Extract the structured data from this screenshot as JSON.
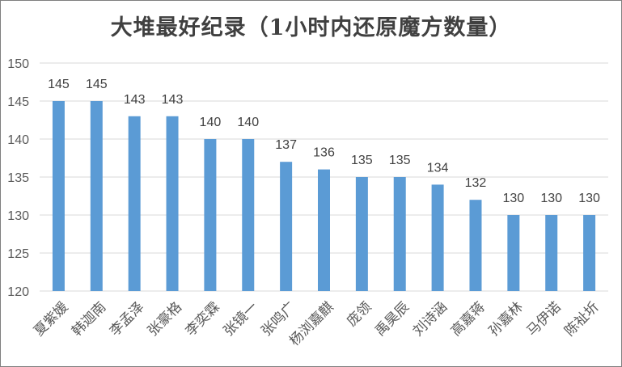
{
  "chart_data": {
    "type": "bar",
    "title": "大堆最好纪录（1小时内还原魔方数量）",
    "categories": [
      "夏紫媛",
      "韩迦南",
      "李孟泽",
      "张豪格",
      "李奕霖",
      "张镜一",
      "张鸣广",
      "杨浏嘉麒",
      "庞领",
      "禹昊辰",
      "刘诗涵",
      "高嘉蒋",
      "孙嘉林",
      "马伊诺",
      "陈祉圻"
    ],
    "values": [
      145,
      145,
      143,
      143,
      140,
      140,
      137,
      136,
      135,
      135,
      134,
      132,
      130,
      130,
      130
    ],
    "ylim": [
      120,
      150
    ],
    "yticks": [
      120,
      125,
      130,
      135,
      140,
      145,
      150
    ],
    "xlabel": "",
    "ylabel": "",
    "grid": true,
    "legend": "none",
    "bar_color": "#5b9bd5"
  }
}
